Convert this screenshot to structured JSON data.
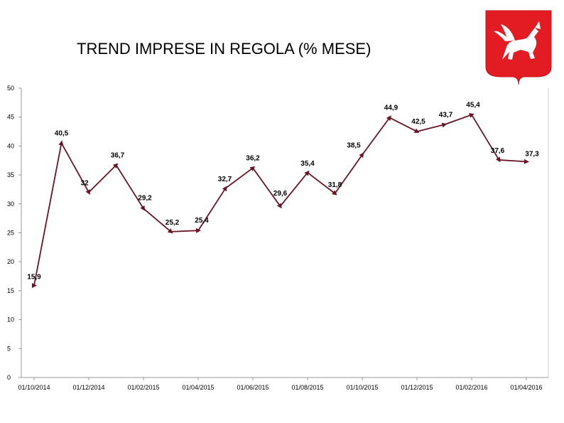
{
  "page": {
    "title": "TREND IMPRESE IN REGOLA (% MESE)"
  },
  "colors": {
    "line": "#6b1424",
    "emblem_red": "#e31b23",
    "axis": "#9a9a9a"
  },
  "emblem": {
    "icon": "pegasus-emblem-icon"
  },
  "chart_data": {
    "type": "line",
    "title": "TREND IMPRESE IN REGOLA (% MESE)",
    "xlabel": "",
    "ylabel": "",
    "x": [
      "01/10/2014",
      "01/11/2014",
      "01/12/2014",
      "01/01/2015",
      "01/02/2015",
      "01/03/2015",
      "01/04/2015",
      "01/05/2015",
      "01/06/2015",
      "01/07/2015",
      "01/08/2015",
      "01/09/2015",
      "01/10/2015",
      "01/11/2015",
      "01/12/2015",
      "01/01/2016",
      "01/02/2016",
      "01/03/2016",
      "01/04/2016"
    ],
    "values": [
      15.9,
      40.5,
      32,
      36.7,
      29.2,
      25.2,
      25.4,
      32.7,
      36.2,
      29.6,
      35.4,
      31.8,
      38.5,
      44.9,
      42.5,
      43.7,
      45.4,
      37.6,
      37.3
    ],
    "data_labels": [
      "15,9",
      "40,5",
      "32",
      "36,7",
      "29,2",
      "25,2",
      "25,4",
      "32,7",
      "36,2",
      "29,6",
      "35,4",
      "31,8",
      "38,5",
      "44,9",
      "42,5",
      "43,7",
      "45,4",
      "37,6",
      "37,3"
    ],
    "x_tick_labels": [
      "01/10/2014",
      "01/12/2014",
      "01/02/2015",
      "01/04/2015",
      "01/06/2015",
      "01/08/2015",
      "01/10/2015",
      "01/12/2015",
      "01/02/2016",
      "01/04/2016"
    ],
    "y_ticks": [
      "0",
      "5",
      "10",
      "15",
      "20",
      "25",
      "30",
      "35",
      "40",
      "45",
      "50"
    ],
    "ylim": [
      0,
      50
    ],
    "grid": false,
    "legend": "none",
    "marker": "triangle"
  }
}
